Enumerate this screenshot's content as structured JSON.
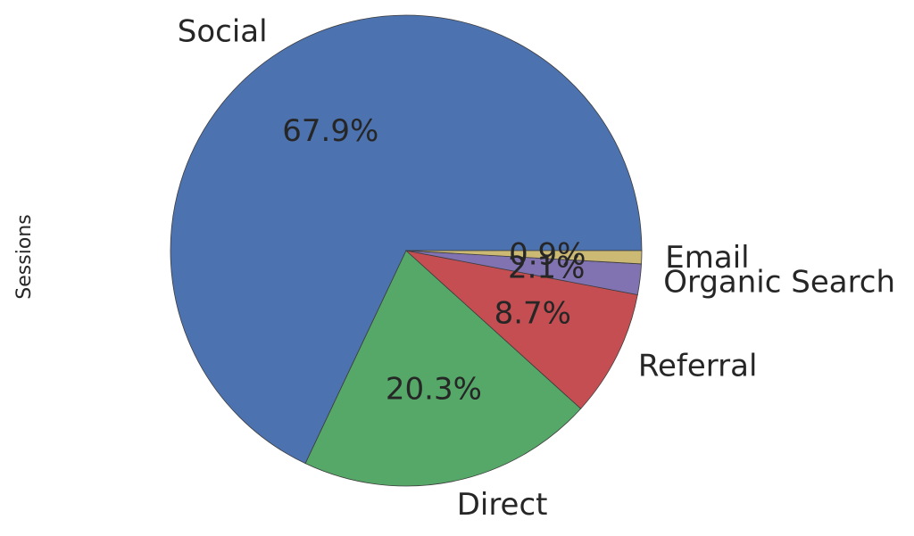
{
  "chart_data": {
    "type": "pie",
    "ylabel": "Sessions",
    "categories": [
      "Social",
      "Direct",
      "Referral",
      "Organic Search",
      "Email"
    ],
    "values": [
      67.9,
      20.3,
      8.7,
      2.1,
      0.9
    ],
    "percent_labels": [
      "67.9%",
      "20.3%",
      "8.7%",
      "2.1%",
      "0.9%"
    ],
    "colors": [
      "#4c72b0",
      "#55a868",
      "#c44e52",
      "#8172b2",
      "#ccb974"
    ],
    "start_angle_deg": 0,
    "direction": "counterclockwise",
    "legend": "none"
  }
}
